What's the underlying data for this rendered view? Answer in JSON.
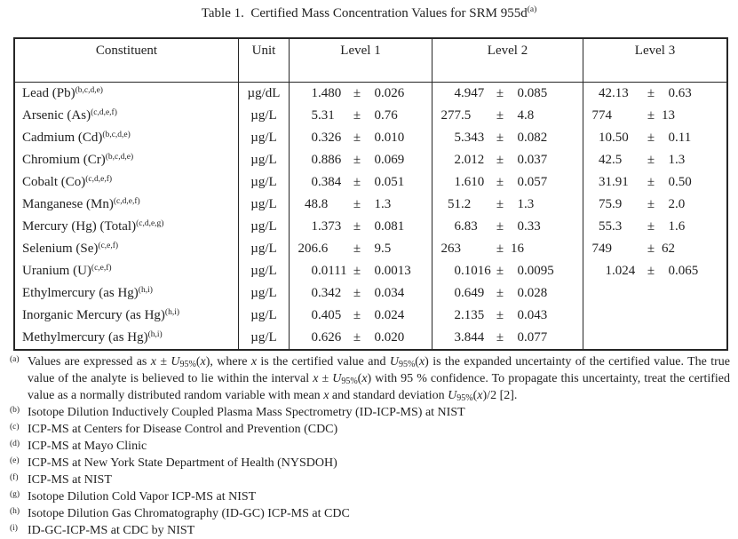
{
  "page": {
    "title": "Table 1.  Certified Mass Concentration Values for SRM 955d",
    "title_sup": "(a)"
  },
  "colors": {
    "text": "#1f1f1f",
    "border": "#262626",
    "background": "#ffffff"
  },
  "table": {
    "headers": [
      "Constituent",
      "Unit",
      "Level 1",
      "Level 2",
      "Level 3"
    ],
    "rows": [
      {
        "constituent": "Lead (Pb)",
        "sup": "(b,c,d,e)",
        "unit": "µg/dL",
        "levels": [
          {
            "v": "1.480",
            "u": "0.026"
          },
          {
            "v": "4.947",
            "u": "0.085"
          },
          {
            "v": "42.13",
            "u": "0.63"
          }
        ]
      },
      {
        "constituent": "Arsenic (As)",
        "sup": "(c,d,e,f)",
        "unit": "µg/L",
        "levels": [
          {
            "v": "5.31",
            "u": "0.76"
          },
          {
            "v": "277.5",
            "u": "4.8"
          },
          {
            "v": "774",
            "u": "13"
          }
        ]
      },
      {
        "constituent": "Cadmium (Cd)",
        "sup": "(b,c,d,e)",
        "unit": "µg/L",
        "levels": [
          {
            "v": "0.326",
            "u": "0.010"
          },
          {
            "v": "5.343",
            "u": "0.082"
          },
          {
            "v": "10.50",
            "u": "0.11"
          }
        ]
      },
      {
        "constituent": "Chromium (Cr)",
        "sup": "(b,c,d,e)",
        "unit": "µg/L",
        "levels": [
          {
            "v": "0.886",
            "u": "0.069"
          },
          {
            "v": "2.012",
            "u": "0.037"
          },
          {
            "v": "42.5",
            "u": "1.3"
          }
        ]
      },
      {
        "constituent": "Cobalt (Co)",
        "sup": "(c,d,e,f)",
        "unit": "µg/L",
        "levels": [
          {
            "v": "0.384",
            "u": "0.051"
          },
          {
            "v": "1.610",
            "u": "0.057"
          },
          {
            "v": "31.91",
            "u": "0.50"
          }
        ]
      },
      {
        "constituent": "Manganese (Mn)",
        "sup": "(c,d,e,f)",
        "unit": "µg/L",
        "levels": [
          {
            "v": "48.8",
            "u": "1.3"
          },
          {
            "v": "51.2",
            "u": "1.3"
          },
          {
            "v": "75.9",
            "u": "2.0"
          }
        ]
      },
      {
        "constituent": "Mercury (Hg) (Total)",
        "sup": "(c,d,e,g)",
        "unit": "µg/L",
        "levels": [
          {
            "v": "1.373",
            "u": "0.081"
          },
          {
            "v": "6.83",
            "u": "0.33"
          },
          {
            "v": "55.3",
            "u": "1.6"
          }
        ]
      },
      {
        "constituent": "Selenium (Se)",
        "sup": "(c,e,f)",
        "unit": "µg/L",
        "levels": [
          {
            "v": "206.6",
            "u": "9.5"
          },
          {
            "v": "263",
            "u": "16"
          },
          {
            "v": "749",
            "u": "62"
          }
        ]
      },
      {
        "constituent": "Uranium (U)",
        "sup": "(c,e,f)",
        "unit": "µg/L",
        "levels": [
          {
            "v": "0.0111",
            "u": "0.0013"
          },
          {
            "v": "0.1016",
            "u": "0.0095"
          },
          {
            "v": "1.024",
            "u": "0.065"
          }
        ]
      },
      {
        "constituent": "Ethylmercury (as Hg)",
        "sup": "(h,i)",
        "unit": "µg/L",
        "levels": [
          {
            "v": "0.342",
            "u": "0.034"
          },
          {
            "v": "0.649",
            "u": "0.028"
          },
          null
        ]
      },
      {
        "constituent": "Inorganic Mercury (as Hg)",
        "sup": "(h,i)",
        "unit": "µg/L",
        "levels": [
          {
            "v": "0.405",
            "u": "0.024"
          },
          {
            "v": "2.135",
            "u": "0.043"
          },
          null
        ]
      },
      {
        "constituent": "Methylmercury (as Hg)",
        "sup": "(h,i)",
        "unit": "µg/L",
        "levels": [
          {
            "v": "0.626",
            "u": "0.020"
          },
          {
            "v": "3.844",
            "u": "0.077"
          },
          null
        ]
      }
    ]
  },
  "footnotes": [
    {
      "m": "(a)",
      "text": "Values are expressed as *x* ± *U*_95%_(*x*), where *x* is the certified value and *U*_95%_(*x*) is the expanded uncertainty of the certified value. The true value of the analyte is believed to lie within the interval *x* ± *U*_95%_(*x*) with 95 % confidence.  To propagate this uncertainty, treat the certified value as a normally distributed random variable with mean *x* and standard deviation *U*_95%_(*x*)/2 [2]."
    },
    {
      "m": "(b)",
      "text": "Isotope Dilution Inductively Coupled Plasma Mass Spectrometry (ID-ICP-MS) at NIST"
    },
    {
      "m": "(c)",
      "text": "ICP-MS at Centers for Disease Control and Prevention (CDC)"
    },
    {
      "m": "(d)",
      "text": "ICP-MS at Mayo Clinic"
    },
    {
      "m": "(e)",
      "text": "ICP-MS at New York State Department of Health (NYSDOH)"
    },
    {
      "m": "(f)",
      "text": "ICP-MS at NIST"
    },
    {
      "m": "(g)",
      "text": "Isotope Dilution Cold Vapor ICP-MS at NIST"
    },
    {
      "m": "(h)",
      "text": "Isotope Dilution Gas Chromatography (ID-GC) ICP-MS at CDC"
    },
    {
      "m": "(i)",
      "text": "ID-GC-ICP-MS at CDC by NIST"
    }
  ]
}
